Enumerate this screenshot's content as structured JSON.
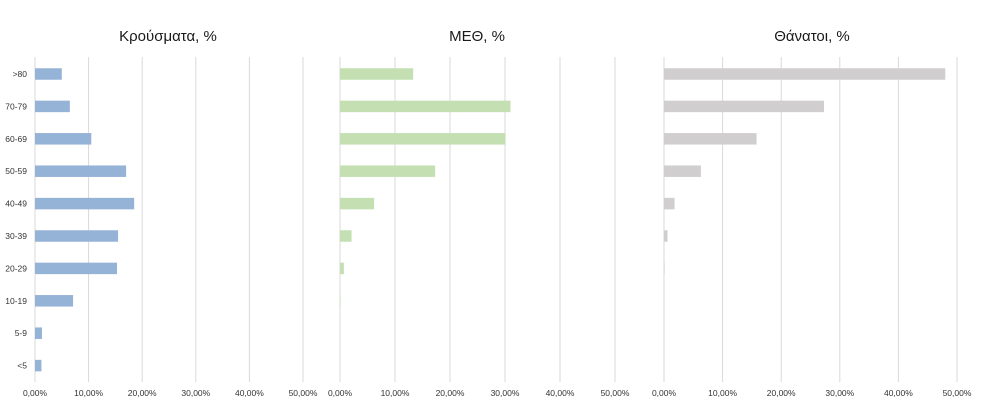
{
  "chart_data": [
    {
      "type": "bar",
      "orientation": "horizontal",
      "title": "Κρούσματα, %",
      "categories": [
        ">80",
        "70-79",
        "60-69",
        "50-59",
        "40-49",
        "30-39",
        "20-29",
        "10-19",
        "5-9",
        "<5"
      ],
      "values": [
        5.0,
        6.5,
        10.5,
        17.0,
        18.5,
        15.5,
        15.3,
        7.1,
        1.3,
        1.2
      ],
      "xlim": [
        0,
        50
      ],
      "xticks": [
        "0,00%",
        "10,00%",
        "20,00%",
        "30,00%",
        "40,00%",
        "50,00%"
      ],
      "color": "#95b3d7",
      "grid": true
    },
    {
      "type": "bar",
      "orientation": "horizontal",
      "title": "ΜΕΘ, %",
      "categories": [
        ">80",
        "70-79",
        "60-69",
        "50-59",
        "40-49",
        "30-39",
        "20-29",
        "10-19",
        "5-9",
        "<5"
      ],
      "values": [
        13.3,
        31.0,
        30.1,
        17.3,
        6.2,
        2.1,
        0.7,
        0.1,
        0,
        0
      ],
      "xlim": [
        0,
        50
      ],
      "xticks": [
        "0,00%",
        "10,00%",
        "20,00%",
        "30,00%",
        "40,00%",
        "50,00%"
      ],
      "color": "#c4e0b2",
      "grid": true
    },
    {
      "type": "bar",
      "orientation": "horizontal",
      "title": "Θάνατοι, %",
      "categories": [
        ">80",
        "70-79",
        "60-69",
        "50-59",
        "40-49",
        "30-39",
        "20-29",
        "10-19",
        "5-9",
        "<5"
      ],
      "values": [
        48.0,
        27.3,
        15.8,
        6.3,
        1.8,
        0.6,
        0.1,
        0,
        0,
        0
      ],
      "xlim": [
        0,
        50
      ],
      "xticks": [
        "0,00%",
        "10,00%",
        "20,00%",
        "30,00%",
        "40,00%",
        "50,00%"
      ],
      "color": "#d0cece",
      "grid": true
    }
  ]
}
